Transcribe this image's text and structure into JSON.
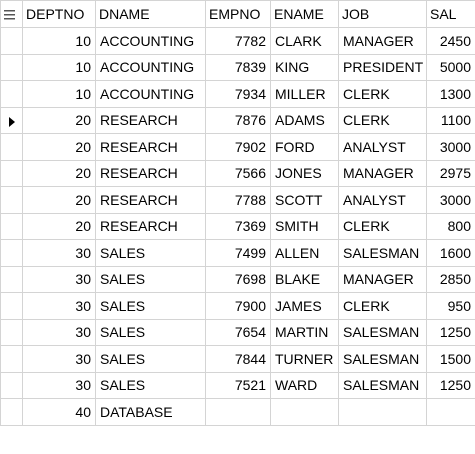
{
  "columns": [
    "DEPTNO",
    "DNAME",
    "EMPNO",
    "ENAME",
    "JOB",
    "SAL"
  ],
  "header_icon": "grid-menu-icon",
  "current_row_icon": "current-row-pointer-icon",
  "current_row_index": 3,
  "rows": [
    {
      "deptno": "10",
      "dname": "ACCOUNTING",
      "empno": "7782",
      "ename": "CLARK",
      "job": "MANAGER",
      "sal": "2450"
    },
    {
      "deptno": "10",
      "dname": "ACCOUNTING",
      "empno": "7839",
      "ename": "KING",
      "job": "PRESIDENT",
      "sal": "5000"
    },
    {
      "deptno": "10",
      "dname": "ACCOUNTING",
      "empno": "7934",
      "ename": "MILLER",
      "job": "CLERK",
      "sal": "1300"
    },
    {
      "deptno": "20",
      "dname": "RESEARCH",
      "empno": "7876",
      "ename": "ADAMS",
      "job": "CLERK",
      "sal": "1100"
    },
    {
      "deptno": "20",
      "dname": "RESEARCH",
      "empno": "7902",
      "ename": "FORD",
      "job": "ANALYST",
      "sal": "3000"
    },
    {
      "deptno": "20",
      "dname": "RESEARCH",
      "empno": "7566",
      "ename": "JONES",
      "job": "MANAGER",
      "sal": "2975"
    },
    {
      "deptno": "20",
      "dname": "RESEARCH",
      "empno": "7788",
      "ename": "SCOTT",
      "job": "ANALYST",
      "sal": "3000"
    },
    {
      "deptno": "20",
      "dname": "RESEARCH",
      "empno": "7369",
      "ename": "SMITH",
      "job": "CLERK",
      "sal": "800"
    },
    {
      "deptno": "30",
      "dname": "SALES",
      "empno": "7499",
      "ename": "ALLEN",
      "job": "SALESMAN",
      "sal": "1600"
    },
    {
      "deptno": "30",
      "dname": "SALES",
      "empno": "7698",
      "ename": "BLAKE",
      "job": "MANAGER",
      "sal": "2850"
    },
    {
      "deptno": "30",
      "dname": "SALES",
      "empno": "7900",
      "ename": "JAMES",
      "job": "CLERK",
      "sal": "950"
    },
    {
      "deptno": "30",
      "dname": "SALES",
      "empno": "7654",
      "ename": "MARTIN",
      "job": "SALESMAN",
      "sal": "1250"
    },
    {
      "deptno": "30",
      "dname": "SALES",
      "empno": "7844",
      "ename": "TURNER",
      "job": "SALESMAN",
      "sal": "1500"
    },
    {
      "deptno": "30",
      "dname": "SALES",
      "empno": "7521",
      "ename": "WARD",
      "job": "SALESMAN",
      "sal": "1250"
    },
    {
      "deptno": "40",
      "dname": "DATABASE",
      "empno": "",
      "ename": "",
      "job": "",
      "sal": ""
    }
  ],
  "colors": {
    "grid_line": "#d4d4d4",
    "background": "#ffffff",
    "text": "#000000",
    "icon": "#555555"
  }
}
